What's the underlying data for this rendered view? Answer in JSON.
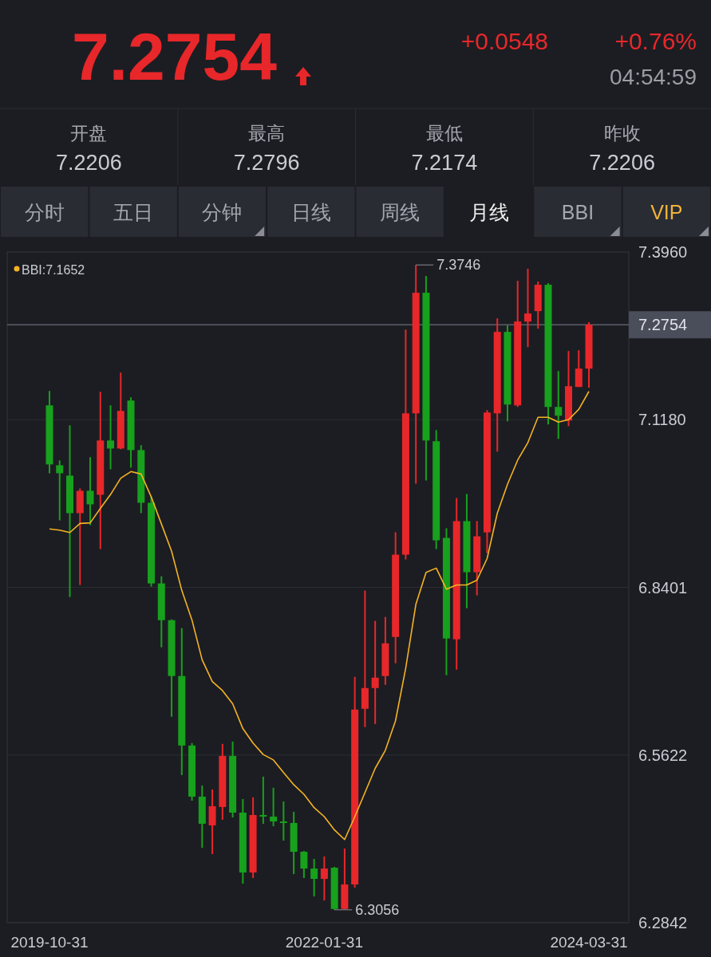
{
  "chart_data": [
    {
      "type": "other",
      "title": "7.2754",
      "annotations": [
        "+0.0548",
        "+0.76%",
        "04:54:59",
        "开盘",
        "7.2206",
        "最高",
        "7.2796",
        "最低",
        "7.2174",
        "昨收",
        "7.2206",
        "分时",
        "五日",
        "分钟",
        "日线",
        "周线",
        "月线",
        "BBI",
        "VIP"
      ]
    },
    {
      "type": "candlestick",
      "categories": [
        "2019-10-31",
        null,
        null,
        null,
        null,
        null,
        null,
        null,
        null,
        null,
        null,
        null,
        null,
        null,
        null,
        null,
        null,
        null,
        null,
        null,
        null,
        null,
        null,
        null,
        null,
        null,
        null,
        "2022-01-31",
        null,
        null,
        null,
        null,
        null,
        null,
        null,
        null,
        null,
        null,
        null,
        null,
        null,
        null,
        null,
        null,
        null,
        null,
        null,
        null,
        null,
        null,
        null,
        null,
        null,
        "2024-03-31"
      ],
      "ohlc": [
        [
          7.1418,
          7.1657,
          7.0293,
          7.0439
        ],
        [
          7.0425,
          7.0505,
          6.9512,
          7.0293
        ],
        [
          7.0253,
          7.1087,
          6.8241,
          6.9631
        ],
        [
          6.9631,
          7.0042,
          6.844,
          7.0002
        ],
        [
          7.0002,
          7.0558,
          6.9433,
          6.9777
        ],
        [
          6.9936,
          7.1643,
          6.9036,
          7.0836
        ],
        [
          7.0836,
          7.1418,
          7.0359,
          7.0703
        ],
        [
          7.0703,
          7.1961,
          7.069,
          7.1326
        ],
        [
          7.1498,
          7.1551,
          7.0386,
          7.0677
        ],
        [
          7.0677,
          7.0757,
          6.9631,
          6.9803
        ],
        [
          6.9803,
          6.991,
          6.8413,
          6.8466
        ],
        [
          6.8466,
          6.8585,
          6.7407,
          6.7857
        ],
        [
          6.7857,
          6.787,
          6.6256,
          6.6931
        ],
        [
          6.6931,
          6.7725,
          6.5289,
          6.5779
        ],
        [
          6.5779,
          6.5819,
          6.4866,
          6.4932
        ],
        [
          6.4932,
          6.5117,
          6.4084,
          6.4482
        ],
        [
          6.4455,
          6.5051,
          6.3979,
          6.4773
        ],
        [
          6.476,
          6.5806,
          6.4548,
          6.5607
        ],
        [
          6.5607,
          6.5845,
          6.4587,
          6.4667
        ],
        [
          6.4667,
          6.4892,
          6.3489,
          6.3674
        ],
        [
          6.3674,
          6.4919,
          6.3582,
          6.4627
        ],
        [
          6.4627,
          6.5263,
          6.4482,
          6.4601
        ],
        [
          6.4601,
          6.5078,
          6.4442,
          6.4521
        ],
        [
          6.4521,
          6.4852,
          6.4204,
          6.4495
        ],
        [
          6.4495,
          6.468,
          6.3648,
          6.4018
        ],
        [
          6.4018,
          6.4031,
          6.3582,
          6.374
        ],
        [
          6.374,
          6.3899,
          6.3277,
          6.3568
        ],
        [
          6.3568,
          6.3939,
          6.3211,
          6.374
        ],
        [
          6.3754,
          6.3767,
          6.3056,
          6.307
        ],
        [
          6.307,
          6.4071,
          6.3065,
          6.3476
        ],
        [
          6.3476,
          6.6917,
          6.3423,
          6.6375
        ],
        [
          6.6388,
          6.8347,
          6.6084,
          6.6732
        ],
        [
          6.6732,
          6.7844,
          6.6136,
          6.6904
        ],
        [
          6.6931,
          6.791,
          6.6785,
          6.7473
        ],
        [
          6.7579,
          6.9313,
          6.7142,
          6.8943
        ],
        [
          6.8943,
          7.2676,
          6.8863,
          7.1286
        ],
        [
          7.1286,
          7.3746,
          7.0121,
          7.3285
        ],
        [
          7.3285,
          7.3563,
          7.0174,
          7.0836
        ],
        [
          7.0823,
          7.1008,
          6.9036,
          6.9181
        ],
        [
          6.9221,
          6.938,
          6.6944,
          6.7553
        ],
        [
          6.754,
          6.9883,
          6.7037,
          6.9499
        ],
        [
          6.9499,
          6.9949,
          6.8056,
          6.8652
        ],
        [
          6.8652,
          6.9499,
          6.8268,
          6.9247
        ],
        [
          6.9313,
          7.1339,
          6.8969,
          7.1299
        ],
        [
          7.1286,
          7.2861,
          7.0651,
          7.2636
        ],
        [
          7.2636,
          7.2742,
          7.1154,
          7.1432
        ],
        [
          7.1418,
          7.3483,
          7.1392,
          7.2808
        ],
        [
          7.2808,
          7.3682,
          7.2385,
          7.2941
        ],
        [
          7.298,
          7.347,
          7.2689,
          7.3417
        ],
        [
          7.3417,
          7.3443,
          7.1101,
          7.1392
        ],
        [
          7.1392,
          7.1988,
          7.0862,
          7.1246
        ],
        [
          7.1167,
          7.2318,
          7.1074,
          7.1736
        ],
        [
          7.1723,
          7.2332,
          7.1723,
          7.2027
        ],
        [
          7.2027,
          7.2796,
          7.171,
          7.2754
        ]
      ],
      "series": [
        {
          "type": "line",
          "name": "BBI:7.1652",
          "color": "#f5b324",
          "values": [
            6.937,
            6.935,
            6.931,
            6.946,
            6.947,
            6.971,
            6.994,
            7.021,
            7.032,
            7.028,
            6.99,
            6.945,
            6.9,
            6.835,
            6.786,
            6.72,
            6.684,
            6.669,
            6.647,
            6.606,
            6.582,
            6.563,
            6.554,
            6.533,
            6.513,
            6.497,
            6.475,
            6.46,
            6.438,
            6.422,
            6.46,
            6.5,
            6.54,
            6.57,
            6.619,
            6.706,
            6.812,
            6.865,
            6.872,
            6.837,
            6.844,
            6.844,
            6.852,
            6.888,
            6.963,
            7.011,
            7.051,
            7.08,
            7.122,
            7.122,
            7.114,
            7.118,
            7.135,
            7.165
          ]
        }
      ],
      "ylim": [
        6.2842,
        7.396
      ],
      "yticks": [
        {
          "value": 7.396,
          "label": "7.3960"
        },
        {
          "value": 7.118,
          "label": "7.1180"
        },
        6.8401,
        6.5622,
        6.2842
      ],
      "grid": "y",
      "legend": "top left",
      "ref_lines": [
        {
          "axis": "y",
          "value": 7.2754,
          "label": "7.2754",
          "color": "#5a5e6a"
        }
      ],
      "annotations": [
        "7.3746",
        "6.3056"
      ]
    }
  ]
}
